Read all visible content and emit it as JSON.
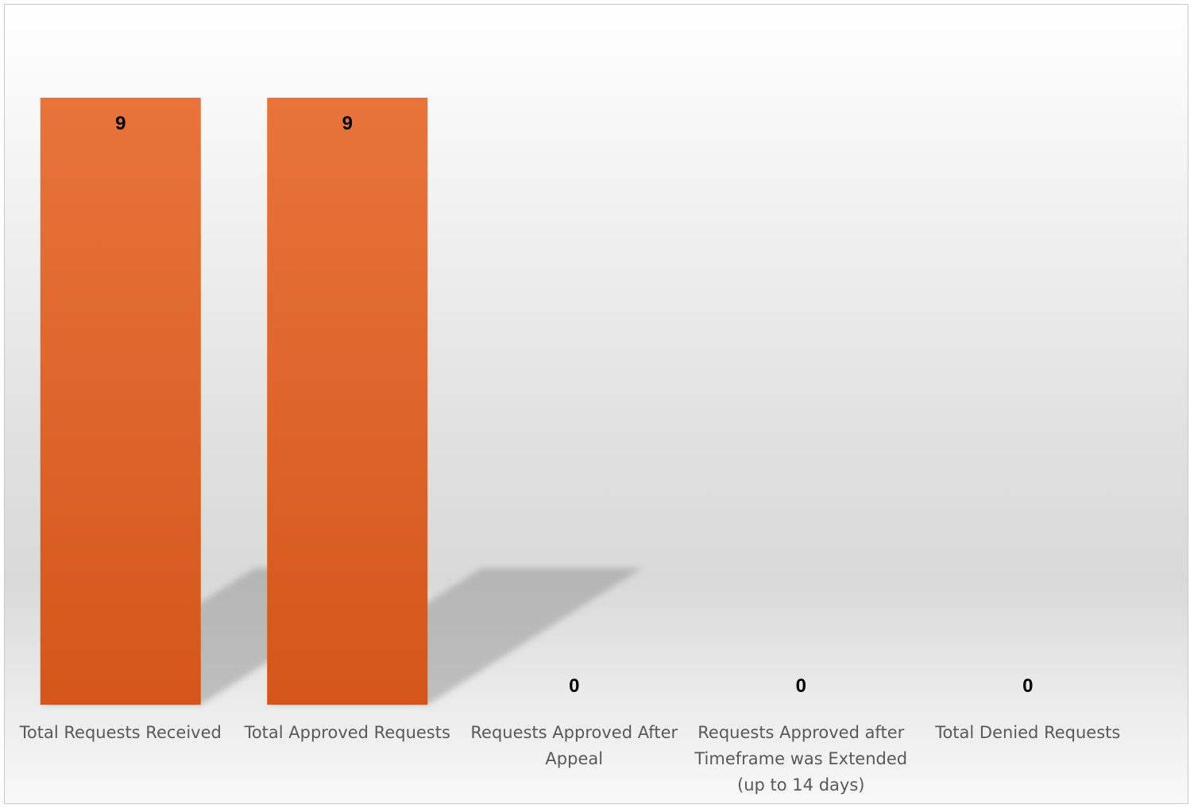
{
  "chart_data": {
    "type": "bar",
    "categories": [
      [
        "Total Requests Received"
      ],
      [
        "Total Approved Requests"
      ],
      [
        "Requests Approved After",
        "Appeal"
      ],
      [
        "Requests Approved after",
        "Timeframe was Extended",
        "(up to 14 days)"
      ],
      [
        "Total Denied Requests"
      ]
    ],
    "values": [
      9,
      9,
      0,
      0,
      0
    ],
    "data_labels": [
      "9",
      "9",
      "0",
      "0",
      "0"
    ],
    "ylim": [
      0,
      9
    ],
    "grid": false,
    "legend": "none",
    "bar_color_top": "#e8743b",
    "bar_color_bottom": "#d4561a",
    "shadow_color": "#9a9a9a"
  }
}
